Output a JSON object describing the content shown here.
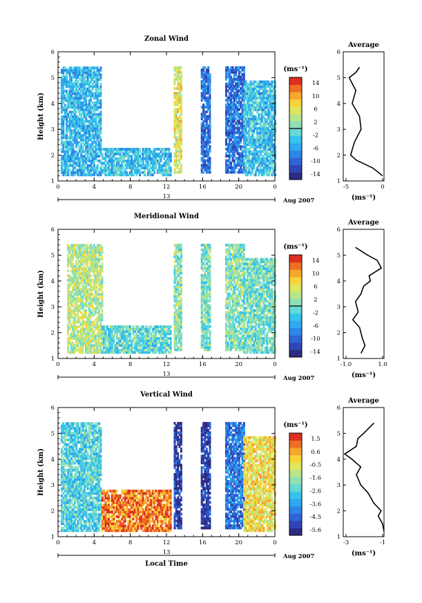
{
  "palette": [
    "#2b2c82",
    "#2f46b6",
    "#2f63d6",
    "#2e86e6",
    "#2fa8ef",
    "#35c4ec",
    "#66d8d6",
    "#8fe0b4",
    "#b7e58a",
    "#e0e65c",
    "#f6d43a",
    "#f6a72e",
    "#ee6f24",
    "#dd3020"
  ],
  "common": {
    "x_ticks": [
      "0",
      "4",
      "8",
      "12",
      "16",
      "20",
      "0"
    ],
    "date_center": "13",
    "date_label": "Aug 2007",
    "y_ticks": [
      "1",
      "2",
      "3",
      "4",
      "5",
      "6"
    ],
    "y_label": "Height (km)",
    "x_label": "Local Time",
    "avg_title": "Average",
    "avg_unit": "(ms⁻¹)",
    "cb_unit": "(ms⁻¹)"
  },
  "panels": [
    {
      "title": "Zonal Wind",
      "colorbar_labels": [
        "14",
        "10",
        "6",
        "2",
        "-2",
        "-6",
        "-10",
        "-14"
      ],
      "avg_x_ticks": [
        "-5",
        "0"
      ]
    },
    {
      "title": "Meridional Wind",
      "colorbar_labels": [
        "14",
        "10",
        "6",
        "2",
        "-2",
        "-6",
        "-10",
        "-14"
      ],
      "avg_x_ticks": [
        "-1.0",
        "1.0"
      ]
    },
    {
      "title": "Vertical Wind",
      "colorbar_labels": [
        "1.5",
        "0.6",
        "-0.5",
        "-1.6",
        "-2.6",
        "-3.6",
        "-4.5",
        "-5.6"
      ],
      "avg_x_ticks": [
        "-3",
        "-1"
      ]
    }
  ],
  "chart_data": [
    {
      "type": "heatmap",
      "title": "Zonal Wind",
      "xlabel": "",
      "ylabel": "Height (km)",
      "x_range_hours": [
        0,
        24
      ],
      "ylim": [
        1,
        6
      ],
      "colorbar_range": [
        -14,
        14
      ],
      "data_columns": [
        {
          "t0": 0.3,
          "t1": 4.8,
          "h0": 1.2,
          "h1": 5.4,
          "mean": -4
        },
        {
          "t0": 4.8,
          "t1": 12.5,
          "h0": 1.2,
          "h1": 2.2,
          "mean": -3
        },
        {
          "t0": 12.8,
          "t1": 13.6,
          "h0": 1.3,
          "h1": 5.4,
          "mean": 5
        },
        {
          "t0": 15.8,
          "t1": 16.8,
          "h0": 1.3,
          "h1": 5.4,
          "mean": -8
        },
        {
          "t0": 18.5,
          "t1": 20.5,
          "h0": 1.3,
          "h1": 5.4,
          "mean": -8
        },
        {
          "t0": 20.5,
          "t1": 24,
          "h0": 1.2,
          "h1": 4.8,
          "mean": -3
        }
      ],
      "average_profile": {
        "x_label": "(ms⁻¹)",
        "xlim": [
          -5,
          0.5
        ],
        "height": [
          1.2,
          1.5,
          1.8,
          2.0,
          2.5,
          3.0,
          3.5,
          4.0,
          4.5,
          5.0,
          5.2,
          5.4
        ],
        "value": [
          0.3,
          -1.0,
          -3.2,
          -4.0,
          -3.5,
          -2.6,
          -2.8,
          -3.8,
          -3.3,
          -4.2,
          -3.3,
          -2.8
        ]
      }
    },
    {
      "type": "heatmap",
      "title": "Meridional Wind",
      "xlabel": "",
      "ylabel": "Height (km)",
      "x_range_hours": [
        0,
        24
      ],
      "ylim": [
        1,
        6
      ],
      "colorbar_range": [
        -14,
        14
      ],
      "data_columns": [
        {
          "t0": 1.0,
          "t1": 4.8,
          "h0": 1.2,
          "h1": 5.4,
          "mean": 3
        },
        {
          "t0": 4.8,
          "t1": 12.5,
          "h0": 1.2,
          "h1": 2.2,
          "mean": -1
        },
        {
          "t0": 12.8,
          "t1": 13.6,
          "h0": 1.3,
          "h1": 5.4,
          "mean": 1
        },
        {
          "t0": 15.8,
          "t1": 16.8,
          "h0": 1.3,
          "h1": 5.4,
          "mean": 0
        },
        {
          "t0": 18.5,
          "t1": 20.5,
          "h0": 1.3,
          "h1": 5.4,
          "mean": 1
        },
        {
          "t0": 20.5,
          "t1": 24,
          "h0": 1.2,
          "h1": 4.8,
          "mean": 0
        }
      ],
      "average_profile": {
        "x_label": "(ms⁻¹)",
        "xlim": [
          -1.5,
          1.5
        ],
        "height": [
          1.2,
          1.5,
          1.8,
          2.2,
          2.5,
          2.8,
          3.2,
          3.5,
          3.8,
          4.0,
          4.2,
          4.5,
          4.8,
          5.0,
          5.3
        ],
        "value": [
          -0.2,
          0.1,
          -0.1,
          -0.3,
          -0.8,
          -0.4,
          -0.6,
          -0.2,
          0.0,
          0.5,
          0.4,
          1.3,
          1.0,
          0.3,
          -0.6
        ]
      }
    },
    {
      "type": "heatmap",
      "title": "Vertical Wind",
      "xlabel": "Local Time",
      "ylabel": "Height (km)",
      "x_range_hours": [
        0,
        24
      ],
      "ylim": [
        1,
        6
      ],
      "colorbar_range": [
        -5.6,
        1.5
      ],
      "data_columns": [
        {
          "t0": 0.3,
          "t1": 4.8,
          "h0": 1.2,
          "h1": 5.4,
          "mean": -2.5
        },
        {
          "t0": 4.8,
          "t1": 12.5,
          "h0": 1.2,
          "h1": 2.8,
          "mean": 0.6
        },
        {
          "t0": 12.8,
          "t1": 13.6,
          "h0": 1.3,
          "h1": 5.4,
          "mean": -5.0
        },
        {
          "t0": 15.8,
          "t1": 16.8,
          "h0": 1.3,
          "h1": 5.4,
          "mean": -5.0
        },
        {
          "t0": 18.5,
          "t1": 20.5,
          "h0": 1.3,
          "h1": 5.4,
          "mean": -4.0
        },
        {
          "t0": 20.5,
          "t1": 24,
          "h0": 1.2,
          "h1": 4.8,
          "mean": -0.5
        }
      ],
      "average_profile": {
        "x_label": "(ms⁻¹)",
        "xlim": [
          -3.8,
          -1
        ],
        "height": [
          1.2,
          1.5,
          1.8,
          2.0,
          2.3,
          2.7,
          3.0,
          3.4,
          3.7,
          4.0,
          4.2,
          4.5,
          4.8,
          5.0,
          5.4
        ],
        "value": [
          -1.0,
          -1.1,
          -1.4,
          -1.2,
          -1.7,
          -2.1,
          -2.6,
          -2.9,
          -2.6,
          -3.2,
          -3.7,
          -2.9,
          -2.8,
          -2.4,
          -1.7
        ]
      }
    }
  ]
}
